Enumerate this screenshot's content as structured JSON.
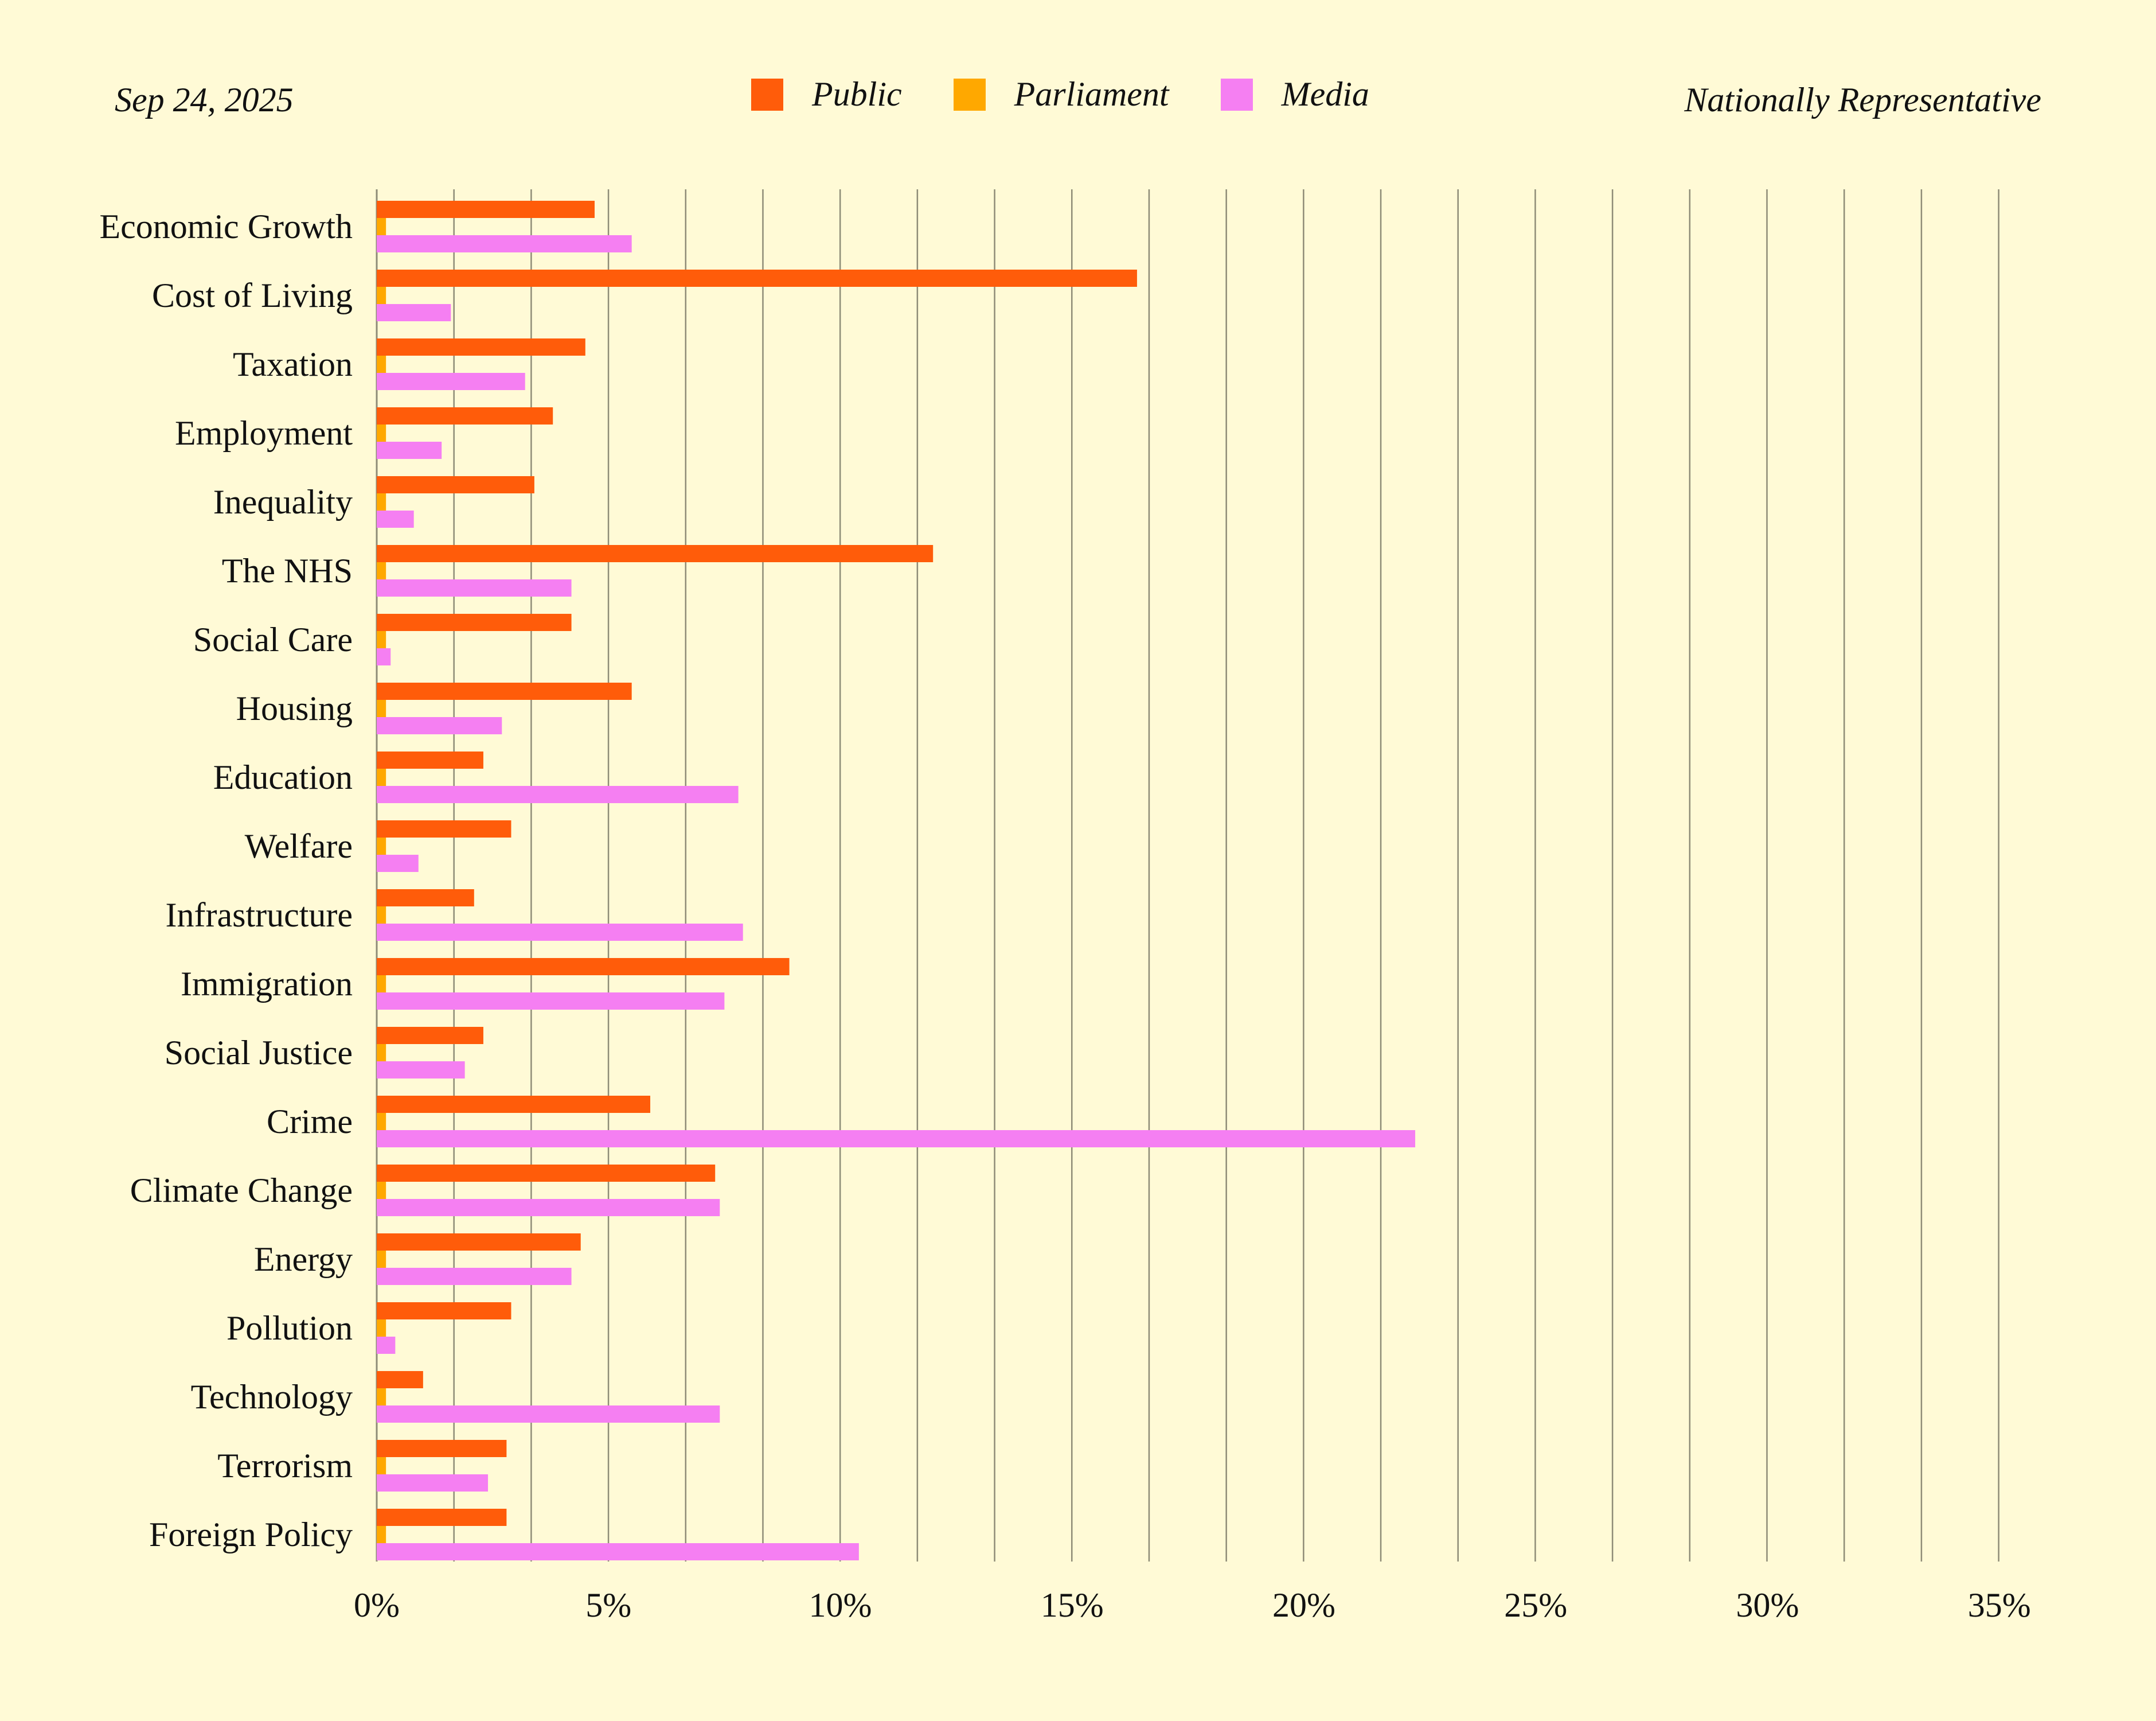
{
  "header": {
    "date": "Sep 24, 2025",
    "sample": "Nationally Representative"
  },
  "colors": {
    "background": "#FFFAD6",
    "grid": "#8E8C77",
    "public": "#FF5C0A",
    "parliament": "#FFA800",
    "media": "#F57FF2"
  },
  "chart_data": {
    "type": "bar",
    "orientation": "horizontal",
    "categories": [
      "Economic Growth",
      "Cost of Living",
      "Taxation",
      "Employment",
      "Inequality",
      "The NHS",
      "Social Care",
      "Housing",
      "Education",
      "Welfare",
      "Infrastructure",
      "Immigration",
      "Social Justice",
      "Crime",
      "Climate Change",
      "Energy",
      "Pollution",
      "Technology",
      "Terrorism",
      "Foreign Policy"
    ],
    "series": [
      {
        "name": "Public",
        "color": "#FF5C0A",
        "values": [
          4.7,
          16.4,
          4.5,
          3.8,
          3.4,
          12.0,
          4.2,
          5.5,
          2.3,
          2.9,
          2.1,
          8.9,
          2.3,
          5.9,
          7.3,
          4.4,
          2.9,
          1.0,
          2.8,
          2.8
        ]
      },
      {
        "name": "Parliament",
        "color": "#FFA800",
        "values": [
          0.2,
          0.2,
          0.2,
          0.2,
          0.2,
          0.2,
          0.2,
          0.2,
          0.2,
          0.2,
          0.2,
          0.2,
          0.2,
          0.2,
          0.2,
          0.2,
          0.2,
          0.2,
          0.2,
          0.2
        ]
      },
      {
        "name": "Media",
        "color": "#F57FF2",
        "values": [
          5.5,
          1.6,
          3.2,
          1.4,
          0.8,
          4.2,
          0.3,
          2.7,
          7.8,
          0.9,
          7.9,
          7.5,
          1.9,
          22.4,
          7.4,
          4.2,
          0.4,
          7.4,
          2.4,
          10.4
        ]
      }
    ],
    "xlim": [
      0,
      35
    ],
    "xticks": [
      0,
      5,
      10,
      15,
      20,
      25,
      30,
      35
    ],
    "xtick_labels": [
      "0%",
      "5%",
      "10%",
      "15%",
      "20%",
      "25%",
      "30%",
      "35%"
    ],
    "grid_step": 1.666,
    "grid": true,
    "legend_position": "top-center"
  }
}
